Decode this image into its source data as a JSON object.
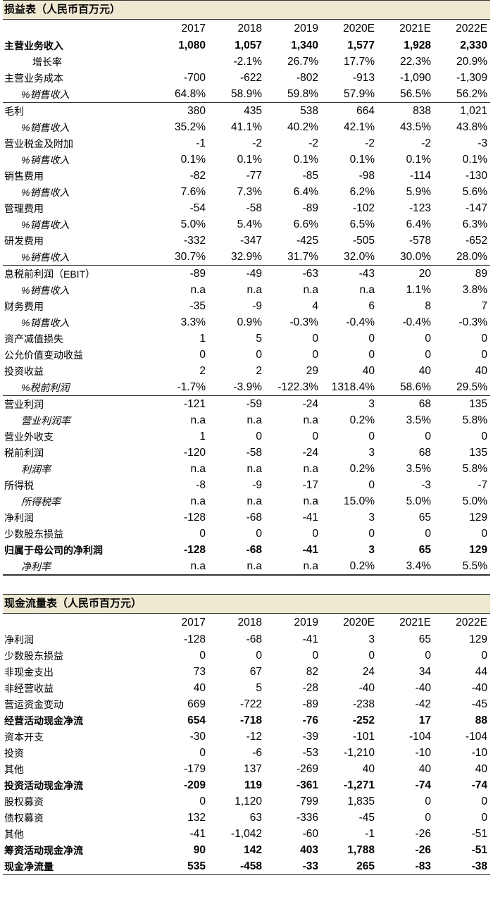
{
  "income": {
    "title": "损益表（人民币百万元）",
    "years": [
      "2017",
      "2018",
      "2019",
      "2020E",
      "2021E",
      "2022E"
    ],
    "rows": [
      {
        "label": "主营业务收入",
        "values": [
          "1,080",
          "1,057",
          "1,340",
          "1,577",
          "1,928",
          "2,330"
        ],
        "style": "bold"
      },
      {
        "label": "增长率",
        "values": [
          "",
          "-2.1%",
          "26.7%",
          "17.7%",
          "22.3%",
          "20.9%"
        ],
        "style": "indent2"
      },
      {
        "label": "主营业务成本",
        "values": [
          "-700",
          "-622",
          "-802",
          "-913",
          "-1,090",
          "-1,309"
        ],
        "style": ""
      },
      {
        "label": "%销售收入",
        "values": [
          "64.8%",
          "58.9%",
          "59.8%",
          "57.9%",
          "56.5%",
          "56.2%"
        ],
        "style": "pct bottom"
      },
      {
        "label": "毛利",
        "values": [
          "380",
          "435",
          "538",
          "664",
          "838",
          "1,021"
        ],
        "style": ""
      },
      {
        "label": "%销售收入",
        "values": [
          "35.2%",
          "41.1%",
          "40.2%",
          "42.1%",
          "43.5%",
          "43.8%"
        ],
        "style": "pct"
      },
      {
        "label": "营业税金及附加",
        "values": [
          "-1",
          "-2",
          "-2",
          "-2",
          "-2",
          "-3"
        ],
        "style": ""
      },
      {
        "label": "%销售收入",
        "values": [
          "0.1%",
          "0.1%",
          "0.1%",
          "0.1%",
          "0.1%",
          "0.1%"
        ],
        "style": "pct"
      },
      {
        "label": "销售费用",
        "values": [
          "-82",
          "-77",
          "-85",
          "-98",
          "-114",
          "-130"
        ],
        "style": ""
      },
      {
        "label": "%销售收入",
        "values": [
          "7.6%",
          "7.3%",
          "6.4%",
          "6.2%",
          "5.9%",
          "5.6%"
        ],
        "style": "pct"
      },
      {
        "label": "管理费用",
        "values": [
          "-54",
          "-58",
          "-89",
          "-102",
          "-123",
          "-147"
        ],
        "style": ""
      },
      {
        "label": "%销售收入",
        "values": [
          "5.0%",
          "5.4%",
          "6.6%",
          "6.5%",
          "6.4%",
          "6.3%"
        ],
        "style": "pct"
      },
      {
        "label": "研发费用",
        "values": [
          "-332",
          "-347",
          "-425",
          "-505",
          "-578",
          "-652"
        ],
        "style": ""
      },
      {
        "label": "%销售收入",
        "values": [
          "30.7%",
          "32.9%",
          "31.7%",
          "32.0%",
          "30.0%",
          "28.0%"
        ],
        "style": "pct bottom"
      },
      {
        "label": "息税前利润（EBIT）",
        "values": [
          "-89",
          "-49",
          "-63",
          "-43",
          "20",
          "89"
        ],
        "style": ""
      },
      {
        "label": "%销售收入",
        "values": [
          "n.a",
          "n.a",
          "n.a",
          "n.a",
          "1.1%",
          "3.8%"
        ],
        "style": "pct"
      },
      {
        "label": "财务费用",
        "values": [
          "-35",
          "-9",
          "4",
          "6",
          "8",
          "7"
        ],
        "style": ""
      },
      {
        "label": "%销售收入",
        "values": [
          "3.3%",
          "0.9%",
          "-0.3%",
          "-0.4%",
          "-0.4%",
          "-0.3%"
        ],
        "style": "pct"
      },
      {
        "label": "资产减值损失",
        "values": [
          "1",
          "5",
          "0",
          "0",
          "0",
          "0"
        ],
        "style": ""
      },
      {
        "label": "公允价值变动收益",
        "values": [
          "0",
          "0",
          "0",
          "0",
          "0",
          "0"
        ],
        "style": ""
      },
      {
        "label": "投资收益",
        "values": [
          "2",
          "2",
          "29",
          "40",
          "40",
          "40"
        ],
        "style": ""
      },
      {
        "label": "%税前利润",
        "values": [
          "-1.7%",
          "-3.9%",
          "-122.3%",
          "1318.4%",
          "58.6%",
          "29.5%"
        ],
        "style": "pct bottom"
      },
      {
        "label": "营业利润",
        "values": [
          "-121",
          "-59",
          "-24",
          "3",
          "68",
          "135"
        ],
        "style": ""
      },
      {
        "label": "营业利润率",
        "values": [
          "n.a",
          "n.a",
          "n.a",
          "0.2%",
          "3.5%",
          "5.8%"
        ],
        "style": "ital"
      },
      {
        "label": "营业外收支",
        "values": [
          "1",
          "0",
          "0",
          "0",
          "0",
          "0"
        ],
        "style": ""
      },
      {
        "label": "税前利润",
        "values": [
          "-120",
          "-58",
          "-24",
          "3",
          "68",
          "135"
        ],
        "style": ""
      },
      {
        "label": "利润率",
        "values": [
          "n.a",
          "n.a",
          "n.a",
          "0.2%",
          "3.5%",
          "5.8%"
        ],
        "style": "ital"
      },
      {
        "label": "所得税",
        "values": [
          "-8",
          "-9",
          "-17",
          "0",
          "-3",
          "-7"
        ],
        "style": ""
      },
      {
        "label": "所得税率",
        "values": [
          "n.a",
          "n.a",
          "n.a",
          "15.0%",
          "5.0%",
          "5.0%"
        ],
        "style": "ital"
      },
      {
        "label": "净利润",
        "values": [
          "-128",
          "-68",
          "-41",
          "3",
          "65",
          "129"
        ],
        "style": ""
      },
      {
        "label": "少数股东损益",
        "values": [
          "0",
          "0",
          "0",
          "0",
          "0",
          "0"
        ],
        "style": ""
      },
      {
        "label": "归属于母公司的净利润",
        "values": [
          "-128",
          "-68",
          "-41",
          "3",
          "65",
          "129"
        ],
        "style": "bold"
      },
      {
        "label": "净利率",
        "values": [
          "n.a",
          "n.a",
          "n.a",
          "0.2%",
          "3.4%",
          "5.5%"
        ],
        "style": "ital bottom"
      }
    ]
  },
  "cashflow": {
    "title": "现金流量表（人民币百万元）",
    "years": [
      "2017",
      "2018",
      "2019",
      "2020E",
      "2021E",
      "2022E"
    ],
    "rows": [
      {
        "label": "净利润",
        "values": [
          "-128",
          "-68",
          "-41",
          "3",
          "65",
          "129"
        ],
        "style": ""
      },
      {
        "label": "少数股东损益",
        "values": [
          "0",
          "0",
          "0",
          "0",
          "0",
          "0"
        ],
        "style": ""
      },
      {
        "label": "非现金支出",
        "values": [
          "73",
          "67",
          "82",
          "24",
          "34",
          "44"
        ],
        "style": ""
      },
      {
        "label": "非经营收益",
        "values": [
          "40",
          "5",
          "-28",
          "-40",
          "-40",
          "-40"
        ],
        "style": ""
      },
      {
        "label": "营运资金变动",
        "values": [
          "669",
          "-722",
          "-89",
          "-238",
          "-42",
          "-45"
        ],
        "style": ""
      },
      {
        "label": "经营活动现金净流",
        "values": [
          "654",
          "-718",
          "-76",
          "-252",
          "17",
          "88"
        ],
        "style": "bold"
      },
      {
        "label": "资本开支",
        "values": [
          "-30",
          "-12",
          "-39",
          "-101",
          "-104",
          "-104"
        ],
        "style": ""
      },
      {
        "label": "投资",
        "values": [
          "0",
          "-6",
          "-53",
          "-1,210",
          "-10",
          "-10"
        ],
        "style": ""
      },
      {
        "label": "其他",
        "values": [
          "-179",
          "137",
          "-269",
          "40",
          "40",
          "40"
        ],
        "style": ""
      },
      {
        "label": "投资活动现金净流",
        "values": [
          "-209",
          "119",
          "-361",
          "-1,271",
          "-74",
          "-74"
        ],
        "style": "bold"
      },
      {
        "label": "股权募资",
        "values": [
          "0",
          "1,120",
          "799",
          "1,835",
          "0",
          "0"
        ],
        "style": ""
      },
      {
        "label": "债权募资",
        "values": [
          "132",
          "63",
          "-336",
          "-45",
          "0",
          "0"
        ],
        "style": ""
      },
      {
        "label": "其他",
        "values": [
          "-41",
          "-1,042",
          "-60",
          "-1",
          "-26",
          "-51"
        ],
        "style": ""
      },
      {
        "label": "筹资活动现金净流",
        "values": [
          "90",
          "142",
          "403",
          "1,788",
          "-26",
          "-51"
        ],
        "style": "bold"
      },
      {
        "label": "现金净流量",
        "values": [
          "535",
          "-458",
          "-33",
          "265",
          "-83",
          "-38"
        ],
        "style": "bold"
      }
    ]
  }
}
